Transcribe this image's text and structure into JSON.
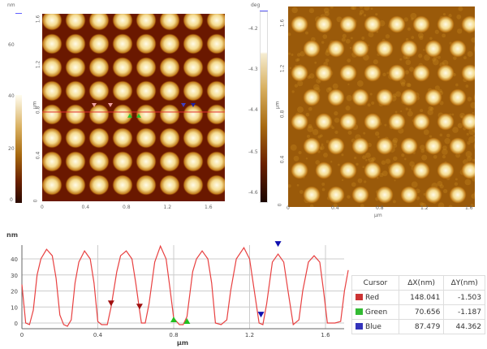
{
  "height_image": {
    "colorbar_unit": "nm",
    "colorbar_ticks": [
      "60",
      "40",
      "20",
      "0"
    ],
    "x_ticks": [
      "0",
      "0.4",
      "0.8",
      "1.2",
      "1.6"
    ],
    "y_ticks": [
      "0",
      "0.4",
      "0.8",
      "1.2",
      "1.6"
    ],
    "axis_unit": "µm",
    "colors": {
      "background": "#6a1800",
      "dot_center": "#fffbe8",
      "dot_edge": "#d08a20"
    }
  },
  "phase_image": {
    "colorbar_unit": "deg",
    "colorbar_ticks": [
      "-4.2",
      "-4.3",
      "-4.4",
      "-4.5",
      "-4.6"
    ],
    "x_ticks": [
      "0",
      "0.4",
      "0.8",
      "1.2",
      "1.6"
    ],
    "y_ticks": [
      "0",
      "0.4",
      "0.8",
      "1.2",
      "1.6"
    ],
    "axis_unit": "µm",
    "x_label": "µm"
  },
  "chart_data": {
    "type": "line",
    "ylabel": "nm",
    "xlabel": "µm",
    "xlim": [
      0,
      1.72
    ],
    "ylim": [
      -3,
      48
    ],
    "x_ticks": [
      "0",
      "0.4",
      "0.8",
      "1.2",
      "1.6"
    ],
    "y_ticks": [
      "0",
      "10",
      "20",
      "30",
      "40"
    ],
    "grid": true,
    "line_color": "#e84040",
    "points": [
      [
        0,
        24
      ],
      [
        0.02,
        0
      ],
      [
        0.04,
        -1
      ],
      [
        0.06,
        8
      ],
      [
        0.08,
        30
      ],
      [
        0.1,
        40
      ],
      [
        0.13,
        46
      ],
      [
        0.16,
        42
      ],
      [
        0.18,
        28
      ],
      [
        0.2,
        5
      ],
      [
        0.22,
        -1
      ],
      [
        0.24,
        -2
      ],
      [
        0.26,
        2
      ],
      [
        0.28,
        25
      ],
      [
        0.3,
        38
      ],
      [
        0.33,
        45
      ],
      [
        0.36,
        40
      ],
      [
        0.38,
        25
      ],
      [
        0.4,
        1
      ],
      [
        0.42,
        -1
      ],
      [
        0.45,
        -1
      ],
      [
        0.47,
        10
      ],
      [
        0.5,
        32
      ],
      [
        0.52,
        42
      ],
      [
        0.55,
        45
      ],
      [
        0.58,
        40
      ],
      [
        0.6,
        25
      ],
      [
        0.62,
        8
      ],
      [
        0.63,
        0
      ],
      [
        0.65,
        0
      ],
      [
        0.67,
        12
      ],
      [
        0.7,
        38
      ],
      [
        0.73,
        48
      ],
      [
        0.76,
        40
      ],
      [
        0.78,
        22
      ],
      [
        0.8,
        3
      ],
      [
        0.83,
        -1
      ],
      [
        0.85,
        -1
      ],
      [
        0.87,
        4
      ],
      [
        0.9,
        32
      ],
      [
        0.92,
        40
      ],
      [
        0.95,
        45
      ],
      [
        0.98,
        40
      ],
      [
        1.0,
        25
      ],
      [
        1.02,
        0
      ],
      [
        1.05,
        -1
      ],
      [
        1.08,
        2
      ],
      [
        1.1,
        20
      ],
      [
        1.13,
        40
      ],
      [
        1.17,
        47
      ],
      [
        1.2,
        40
      ],
      [
        1.22,
        24
      ],
      [
        1.25,
        0
      ],
      [
        1.27,
        -1
      ],
      [
        1.29,
        12
      ],
      [
        1.32,
        38
      ],
      [
        1.35,
        43
      ],
      [
        1.38,
        38
      ],
      [
        1.4,
        22
      ],
      [
        1.43,
        -1
      ],
      [
        1.46,
        2
      ],
      [
        1.48,
        20
      ],
      [
        1.51,
        38
      ],
      [
        1.54,
        42
      ],
      [
        1.57,
        38
      ],
      [
        1.59,
        20
      ],
      [
        1.61,
        0
      ],
      [
        1.65,
        0
      ],
      [
        1.68,
        1
      ],
      [
        1.7,
        20
      ],
      [
        1.72,
        33
      ]
    ],
    "markers": [
      {
        "cursor": "Red",
        "x": 0.47,
        "y": 10,
        "dir": "down",
        "color": "#a01010"
      },
      {
        "cursor": "Red",
        "x": 0.62,
        "y": 8,
        "dir": "down",
        "color": "#a01010"
      },
      {
        "cursor": "Green",
        "x": 0.8,
        "y": 1,
        "dir": "up",
        "color": "#20c020"
      },
      {
        "cursor": "Green",
        "x": 0.87,
        "y": 0,
        "dir": "up",
        "color": "#20c020"
      },
      {
        "cursor": "Blue",
        "x": 1.26,
        "y": 3,
        "dir": "down",
        "color": "#1010b0"
      },
      {
        "cursor": "Blue",
        "x": 1.35,
        "y": 47,
        "dir": "down",
        "color": "#1010b0"
      }
    ]
  },
  "cursor_table": {
    "headers": [
      "Cursor",
      "ΔX(nm)",
      "ΔY(nm)"
    ],
    "rows": [
      {
        "name": "Red",
        "color": "#cc3333",
        "dx": "148.041",
        "dy": "-1.503"
      },
      {
        "name": "Green",
        "color": "#33bb33",
        "dx": "70.656",
        "dy": "-1.187"
      },
      {
        "name": "Blue",
        "color": "#3333bb",
        "dx": "87.479",
        "dy": "44.362"
      }
    ]
  }
}
